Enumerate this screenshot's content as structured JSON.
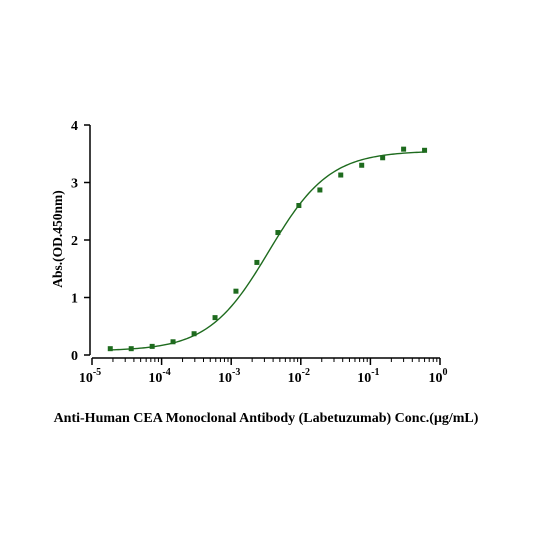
{
  "chart_data": {
    "type": "scatter",
    "xscale": "log",
    "xlim": [
      1e-05,
      1
    ],
    "ylim": [
      0,
      4
    ],
    "x_ticks": [
      {
        "value": 1e-05,
        "base": "10",
        "exp": "-5"
      },
      {
        "value": 0.0001,
        "base": "10",
        "exp": "-4"
      },
      {
        "value": 0.001,
        "base": "10",
        "exp": "-3"
      },
      {
        "value": 0.01,
        "base": "10",
        "exp": "-2"
      },
      {
        "value": 0.1,
        "base": "10",
        "exp": "-1"
      },
      {
        "value": 1,
        "base": "10",
        "exp": "0"
      }
    ],
    "y_ticks": [
      0,
      1,
      2,
      3,
      4
    ],
    "ylabel": "Abs.(OD.450nm)",
    "xlabel": "Anti-Human CEA Monoclonal Antibody  (Labetuzumab) Conc.(μg/mL)",
    "grid": false,
    "legend": "none",
    "colors": {
      "points": "#1e6b1e",
      "curve": "#1e6b1e",
      "axis": "#000000"
    },
    "fit": {
      "model": "4PL",
      "bottom": 0.07,
      "top": 3.55,
      "ec50": 0.0035,
      "hill": 1.0
    },
    "series": [
      {
        "x": [
          1.83e-05,
          3.66e-05,
          7.32e-05,
          0.000146,
          0.000293,
          0.000586,
          0.00117,
          0.00234,
          0.00469,
          0.00938,
          0.0188,
          0.0375,
          0.075,
          0.15,
          0.3,
          0.6
        ],
        "y": [
          0.11,
          0.11,
          0.15,
          0.23,
          0.37,
          0.65,
          1.11,
          1.61,
          2.13,
          2.6,
          2.87,
          3.13,
          3.3,
          3.43,
          3.58,
          3.56
        ]
      }
    ]
  }
}
